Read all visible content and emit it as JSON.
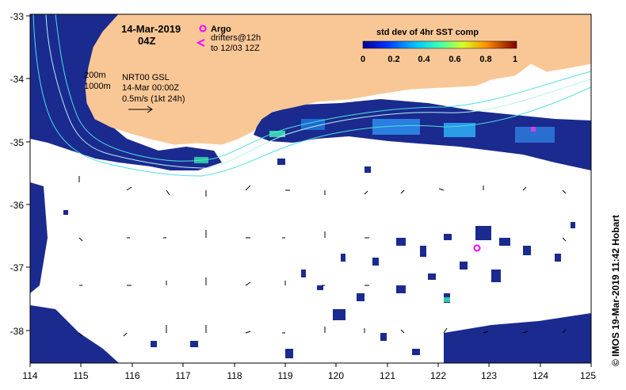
{
  "map": {
    "date_label": "14-Mar-2019",
    "time_label": "04Z",
    "legend": {
      "argo_label": "Argo",
      "drifters_label": "drifters@12h",
      "drifters_sub": "to 12/03 12Z",
      "argo_color": "#ff00ff",
      "drifter_color": "#ff00ff"
    },
    "contours": {
      "shallow": "200m",
      "deep": "1000m"
    },
    "current_info": {
      "product": "NRT00 GSL",
      "time": "14-Mar 00:00Z",
      "scale": "0.5m/s (1kt 24h)"
    },
    "colorbar": {
      "title": "std dev of 4hr SST comp",
      "ticks": [
        "0",
        "0.2",
        "0.4",
        "0.6",
        "0.8",
        "1"
      ]
    },
    "credit": "© IMOS 19-Mar-2019 11:42 Hobart",
    "x_ticks": [
      "114",
      "115",
      "116",
      "117",
      "118",
      "119",
      "120",
      "121",
      "122",
      "123",
      "124",
      "125"
    ],
    "y_ticks": [
      "-33",
      "-34",
      "-35",
      "-36",
      "-37",
      "-38"
    ],
    "colors": {
      "land": "#f9c796",
      "ocean_data": "#1a2a8f",
      "contour": "#4de0e0",
      "frame": "#000000"
    }
  }
}
